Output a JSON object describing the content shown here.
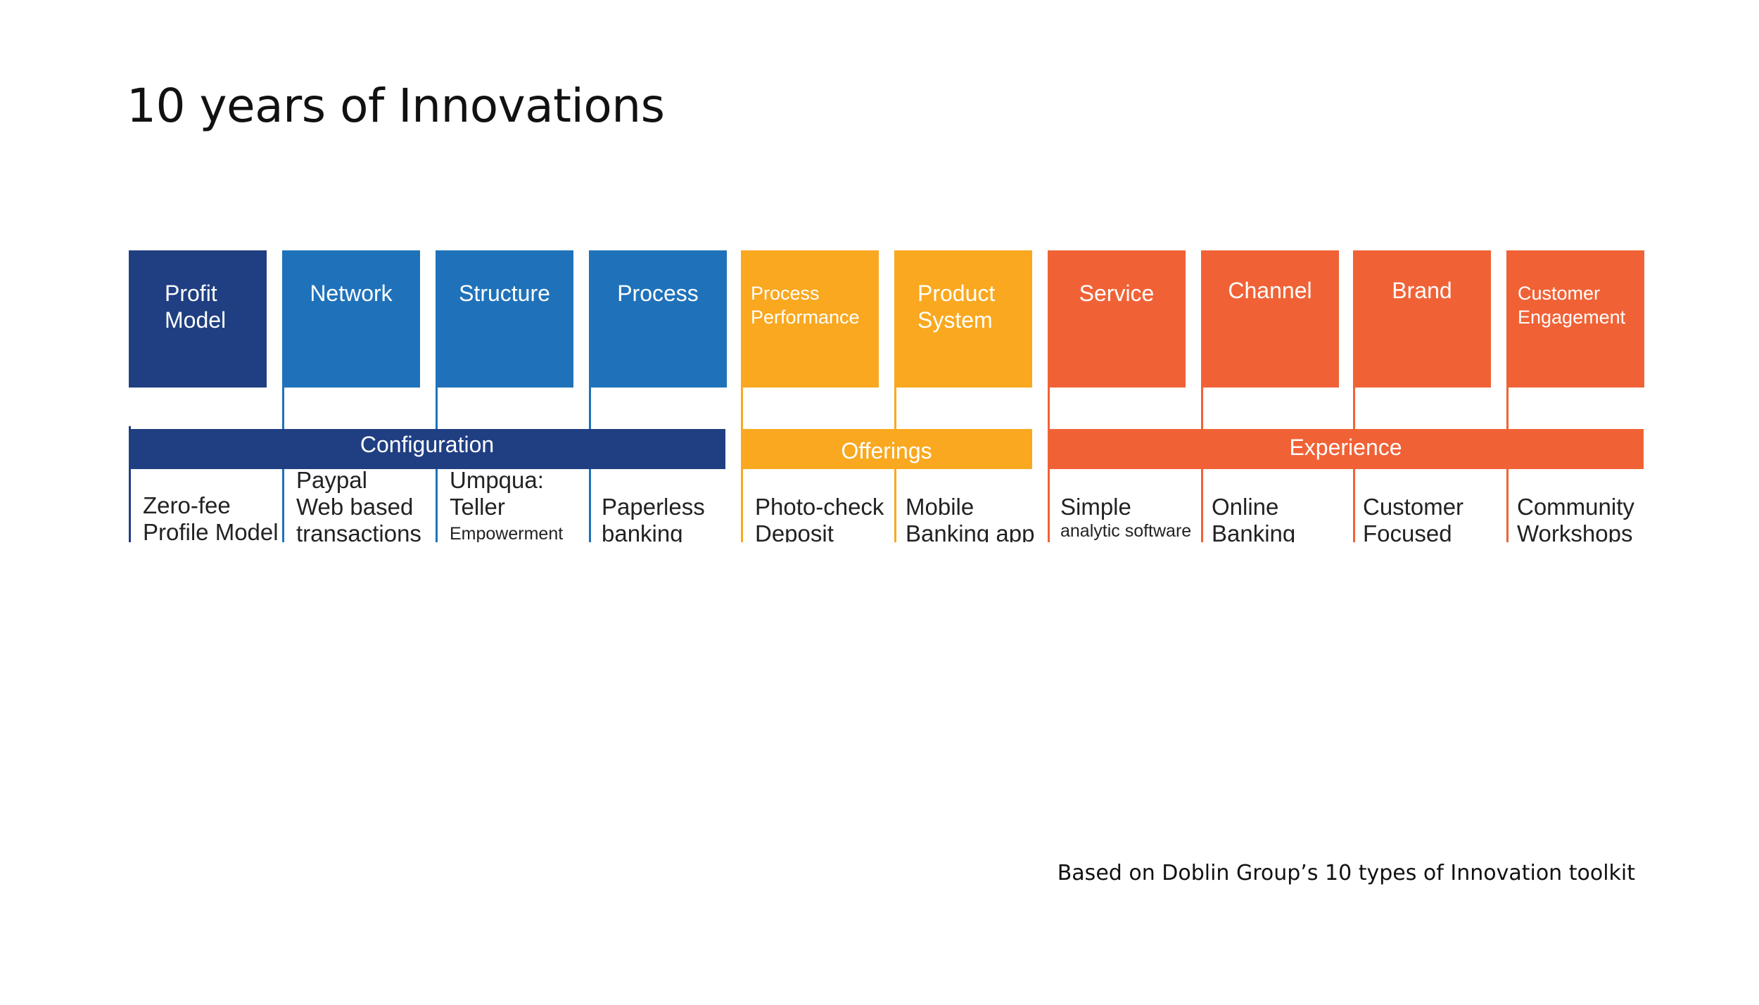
{
  "title": "10 years of Innovations",
  "footer": "Based on Doblin Group’s 10 types of Innovation toolkit",
  "colors": {
    "dark_blue": "#203F82",
    "blue": "#1F72BA",
    "yellow": "#F9A81F",
    "orange": "#F06236"
  },
  "groups": [
    {
      "label": "Configuration",
      "color": "#203F82"
    },
    {
      "label": "Offerings",
      "color": "#F9A81F"
    },
    {
      "label": "Experience",
      "color": "#F06236"
    }
  ],
  "categories": [
    {
      "label": "Profit\nModel",
      "color": "#203F82",
      "example": {
        "line1": "Zero-fee",
        "line2": "Profile Model",
        "line3": ""
      }
    },
    {
      "label": "Network",
      "color": "#1F72BA",
      "example": {
        "line1": "Paypal",
        "line2": "Web based",
        "line3": "transactions"
      }
    },
    {
      "label": "Structure",
      "color": "#1F72BA",
      "example": {
        "line1": "Umpqua:",
        "line2": "Teller",
        "line3": "Empowerment"
      }
    },
    {
      "label": "Process",
      "color": "#1F72BA",
      "example": {
        "line1": "Paperless",
        "line2": "banking",
        "line3": ""
      }
    },
    {
      "label": "Process\nPerformance",
      "color": "#F9A81F",
      "example": {
        "line1": "Photo-check",
        "line2": "Deposit",
        "line3": ""
      }
    },
    {
      "label": "Product\nSystem",
      "color": "#F9A81F",
      "example": {
        "line1": "Mobile",
        "line2": "Banking app",
        "line3": ""
      }
    },
    {
      "label": "Service",
      "color": "#F06236",
      "example": {
        "line1": "Simple",
        "line2": "analytic software",
        "line3": ""
      }
    },
    {
      "label": "Channel",
      "color": "#F06236",
      "example": {
        "line1": "Online",
        "line2": "Banking",
        "line3": ""
      }
    },
    {
      "label": "Brand",
      "color": "#F06236",
      "example": {
        "line1": "Customer",
        "line2": "Focused",
        "line3": ""
      }
    },
    {
      "label": "Customer\nEngagement",
      "color": "#F06236",
      "example": {
        "line1": "Community",
        "line2": "Workshops",
        "line3": ""
      }
    }
  ]
}
